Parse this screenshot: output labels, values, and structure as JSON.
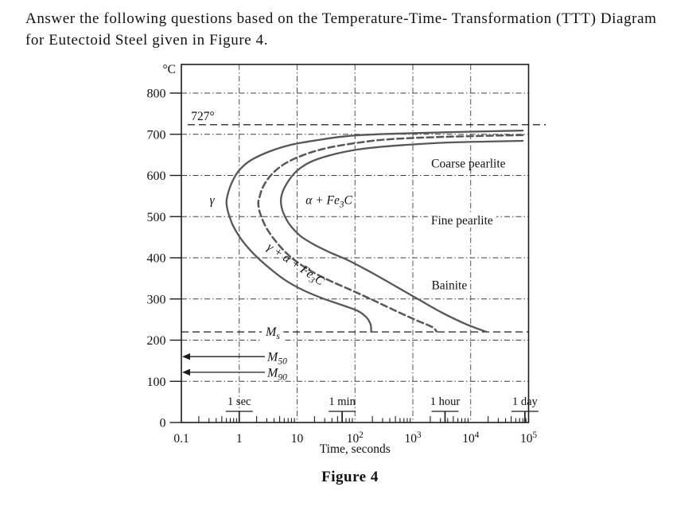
{
  "question": {
    "line1": "Answer the following questions based on the Temperature-Time- Transformation (TTT) Diagram",
    "line2": "for Eutectoid Steel given in Figure 4."
  },
  "figure": {
    "caption": "Figure 4"
  },
  "colors": {
    "curve": "#57575a",
    "grid": "#3f3f3f",
    "axis": "#1c1c1c",
    "text": "#111111",
    "background": "#ffffff"
  },
  "chart_data": {
    "type": "line",
    "title": "TTT Diagram for Eutectoid Steel",
    "xlabel": "Time, seconds",
    "y_unit": "°C",
    "x_scale": "log",
    "x_range_seconds": [
      0.1,
      100000
    ],
    "y_range": [
      0,
      870
    ],
    "y_ticks": [
      0,
      100,
      200,
      300,
      400,
      500,
      600,
      700,
      800
    ],
    "x_tick_labels": [
      {
        "logt": -1,
        "label": "0.1"
      },
      {
        "logt": 0,
        "label": "1"
      },
      {
        "logt": 1,
        "label": "10"
      },
      {
        "logt": 2,
        "label": "10^{2}"
      },
      {
        "logt": 3,
        "label": "10^{3}"
      },
      {
        "logt": 4,
        "label": "10^{4}"
      },
      {
        "logt": 5,
        "label": "10^{5}"
      }
    ],
    "grid": {
      "vertical_logt": [
        0,
        1,
        2,
        3,
        4
      ],
      "horizontal_T": [
        100,
        200,
        300,
        400,
        500,
        600,
        700,
        800
      ]
    },
    "eutectoid_line": {
      "T": 727,
      "label": "727°",
      "label_logt": -0.63
    },
    "ms_line": {
      "T": 220,
      "label": "M_{s}",
      "label_logt": 0.58
    },
    "m_arrows": [
      {
        "name": "m50",
        "label": "M_{50}",
        "T": 160
      },
      {
        "name": "m90",
        "label": "M_{90}",
        "T": 122
      }
    ],
    "time_markers": [
      {
        "label": "1 sec",
        "seconds": 1
      },
      {
        "label": "1 min",
        "seconds": 60
      },
      {
        "label": "1 hour",
        "seconds": 3600
      },
      {
        "label": "1 day",
        "seconds": 86400
      }
    ],
    "series": [
      {
        "name": "transformation-start",
        "style": "solid",
        "points": [
          [
            4.9,
            709
          ],
          [
            3.6,
            705
          ],
          [
            2.6,
            701
          ],
          [
            1.9,
            696
          ],
          [
            1.36,
            686
          ],
          [
            0.88,
            674
          ],
          [
            0.5,
            657
          ],
          [
            0.19,
            636
          ],
          [
            -0.01,
            611
          ],
          [
            -0.13,
            582
          ],
          [
            -0.2,
            553
          ],
          [
            -0.22,
            533
          ],
          [
            -0.19,
            510
          ],
          [
            -0.11,
            479
          ],
          [
            0.03,
            446
          ],
          [
            0.22,
            414
          ],
          [
            0.47,
            381
          ],
          [
            0.77,
            348
          ],
          [
            1.11,
            321
          ],
          [
            1.47,
            300
          ],
          [
            1.8,
            284
          ],
          [
            2.05,
            271
          ],
          [
            2.2,
            255
          ],
          [
            2.27,
            238
          ],
          [
            2.28,
            220
          ]
        ]
      },
      {
        "name": "transformation-50pct",
        "style": "dashed",
        "points": [
          [
            4.9,
            698
          ],
          [
            3.6,
            694
          ],
          [
            2.6,
            688
          ],
          [
            1.98,
            678
          ],
          [
            1.47,
            665
          ],
          [
            1.06,
            647
          ],
          [
            0.76,
            626
          ],
          [
            0.55,
            601
          ],
          [
            0.41,
            572
          ],
          [
            0.35,
            547
          ],
          [
            0.33,
            530
          ],
          [
            0.37,
            504
          ],
          [
            0.48,
            470
          ],
          [
            0.66,
            435
          ],
          [
            0.89,
            402
          ],
          [
            1.2,
            371
          ],
          [
            1.54,
            346
          ],
          [
            1.91,
            323
          ],
          [
            2.3,
            298
          ],
          [
            2.69,
            272
          ],
          [
            3.05,
            249
          ],
          [
            3.33,
            232
          ],
          [
            3.41,
            221
          ]
        ]
      },
      {
        "name": "transformation-finish",
        "style": "solid",
        "points": [
          [
            4.9,
            684
          ],
          [
            3.6,
            680
          ],
          [
            2.67,
            672
          ],
          [
            2.05,
            663
          ],
          [
            1.57,
            649
          ],
          [
            1.22,
            632
          ],
          [
            0.98,
            609
          ],
          [
            0.83,
            582
          ],
          [
            0.74,
            556
          ],
          [
            0.72,
            535
          ],
          [
            0.76,
            510
          ],
          [
            0.87,
            481
          ],
          [
            1.05,
            454
          ],
          [
            1.28,
            433
          ],
          [
            1.57,
            413
          ],
          [
            1.91,
            392
          ],
          [
            2.3,
            363
          ],
          [
            2.69,
            332
          ],
          [
            3.11,
            298
          ],
          [
            3.5,
            267
          ],
          [
            3.9,
            240
          ],
          [
            4.27,
            220
          ]
        ]
      }
    ],
    "region_labels": [
      {
        "name": "gamma",
        "text": "γ",
        "logt": -0.47,
        "T": 541,
        "italic": true
      },
      {
        "name": "alpha-fe3c",
        "text": "α + Fe_{3}C",
        "logt": 1.55,
        "T": 541,
        "italic": true
      },
      {
        "name": "gamma-alpha-fe3c",
        "text": "γ + α + Fe_{3}C",
        "logt": 0.98,
        "T": 386,
        "italic": true,
        "rotate": 34
      },
      {
        "name": "coarse-pearlite",
        "text": "Coarse pearlite",
        "logt": 3.96,
        "T": 630
      },
      {
        "name": "fine-pearlite",
        "text": "Fine pearlite",
        "logt": 3.85,
        "T": 492,
        "bg": true
      },
      {
        "name": "bainite",
        "text": "Bainite",
        "logt": 3.63,
        "T": 334
      }
    ]
  }
}
